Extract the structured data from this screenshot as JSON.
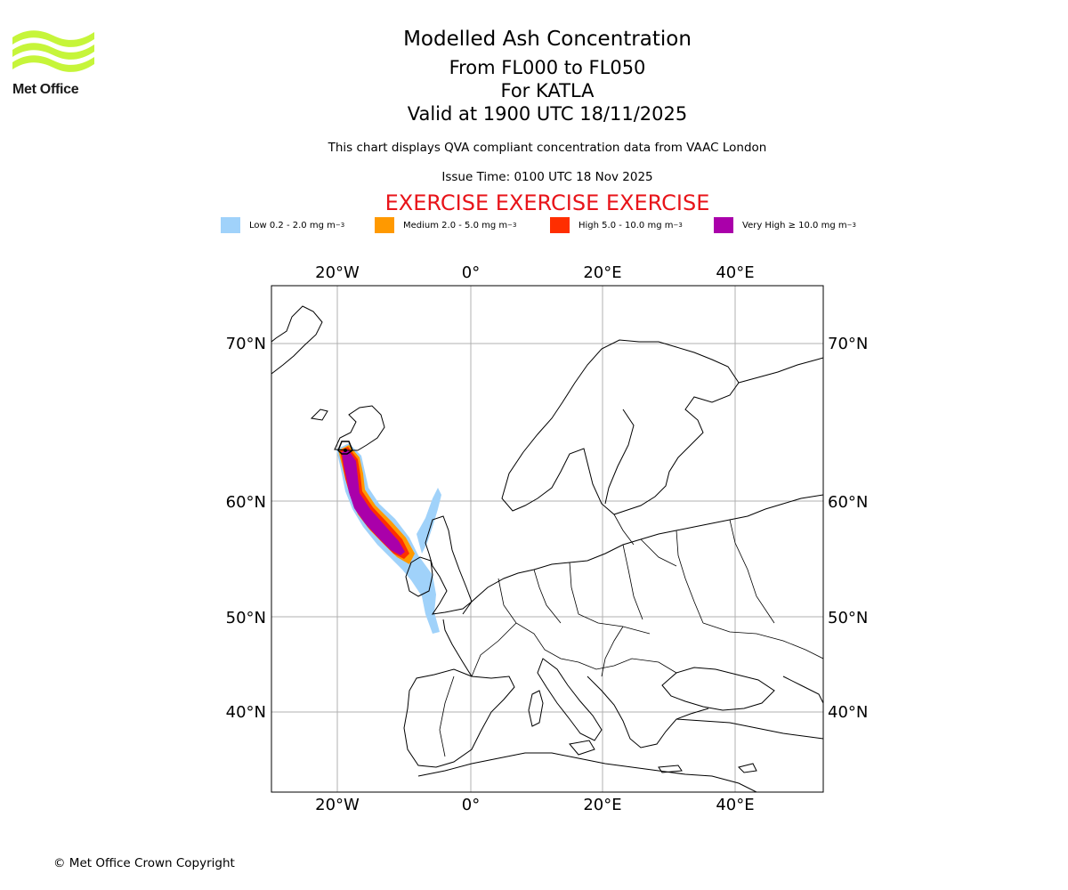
{
  "logo": {
    "name": "Met Office"
  },
  "title": "Modelled Ash Concentration",
  "subtitle_levels": "From FL000 to FL050",
  "subtitle_volcano": "For KATLA",
  "subtitle_valid": "Valid at 1900 UTC 18/11/2025",
  "description": "This chart displays QVA compliant concentration data from VAAC London",
  "issue_time": "Issue Time: 0100 UTC 18 Nov 2025",
  "exercise_banner": "EXERCISE EXERCISE EXERCISE",
  "legend": [
    {
      "label": "Low 0.2 - 2.0 mg m",
      "color": "#a0d2fa"
    },
    {
      "label": "Medium 2.0 - 5.0 mg m",
      "color": "#ff9900"
    },
    {
      "label": "High 5.0 - 10.0 mg m",
      "color": "#ff2e00"
    },
    {
      "label": "Very High ≥ 10.0 mg m",
      "color": "#aa00aa"
    }
  ],
  "legend_unit_exp": "−3",
  "map": {
    "lon_labels_top": [
      "20°W",
      "0°",
      "20°E",
      "40°E"
    ],
    "lon_labels_bottom": [
      "20°W",
      "0°",
      "20°E",
      "40°E"
    ],
    "lat_labels_left": [
      "70°N",
      "60°N",
      "50°N",
      "40°N"
    ],
    "lat_labels_right": [
      "70°N",
      "60°N",
      "50°N",
      "40°N"
    ]
  },
  "copyright": "© Met Office Crown Copyright"
}
